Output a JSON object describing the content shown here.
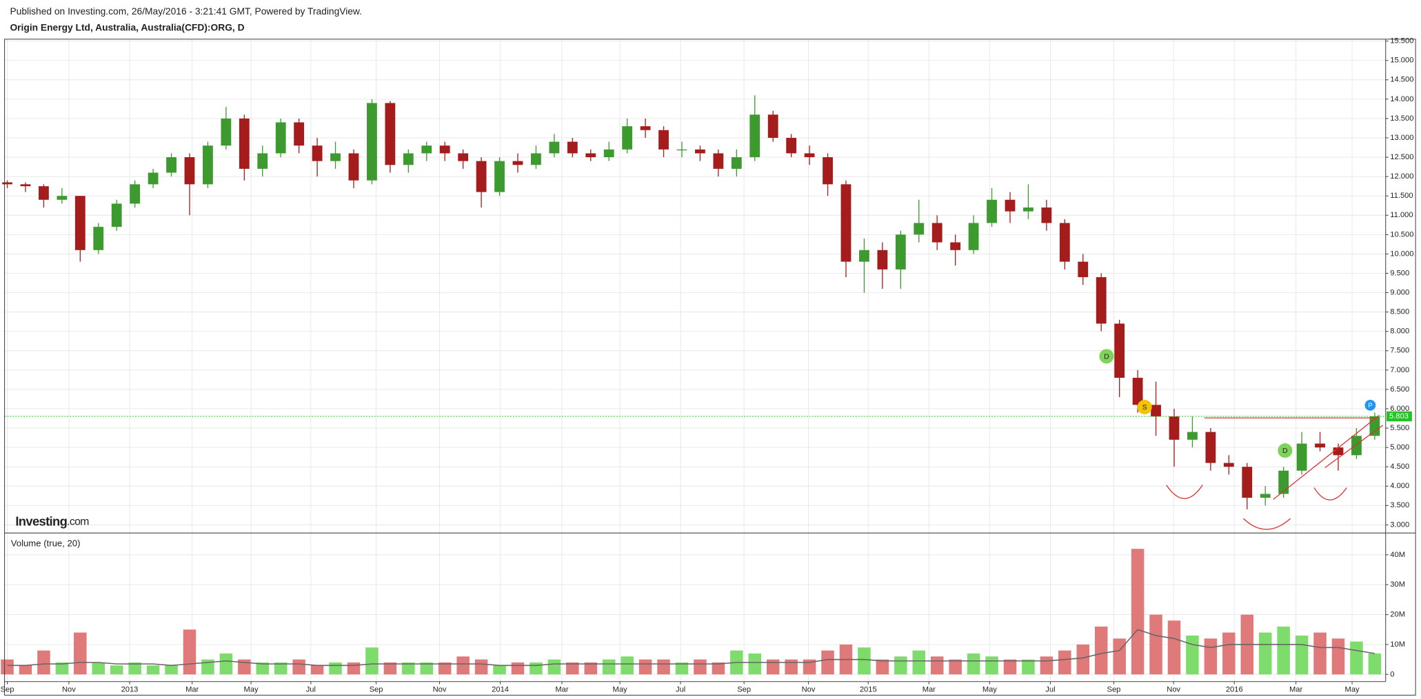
{
  "header": {
    "published": "Published on Investing.com, 26/May/2016 - 3:21:41 GMT, Powered by TradingView.",
    "symbol": "Origin Energy Ltd, Australia, Australia(CFD):ORG, D"
  },
  "logo": [
    "Investing",
    ".com"
  ],
  "chart_data": [
    {
      "type": "candlestick",
      "up_color": "#3c9a2f",
      "down_color": "#a51c1c",
      "open": [
        11.85,
        11.8,
        11.75,
        11.4,
        11.5,
        10.1,
        10.7,
        11.3,
        11.8,
        12.1,
        12.5,
        11.8,
        12.8,
        13.5,
        12.2,
        12.6,
        13.4,
        12.8,
        12.4,
        12.6,
        11.9,
        13.9,
        12.3,
        12.6,
        12.8,
        12.6,
        12.4,
        11.6,
        12.4,
        12.3,
        12.6,
        12.9,
        12.6,
        12.5,
        12.7,
        13.3,
        13.2,
        12.7,
        12.7,
        12.6,
        12.2,
        12.5,
        13.6,
        13.0,
        12.6,
        12.5,
        11.8,
        9.8,
        10.1,
        9.6,
        10.5,
        10.8,
        10.3,
        10.1,
        10.8,
        11.4,
        11.1,
        11.2,
        10.8,
        9.8,
        9.4,
        8.2,
        6.8,
        6.1,
        5.8,
        5.2,
        5.4,
        4.6,
        4.5,
        3.7,
        3.8,
        4.4,
        5.1,
        5.0,
        4.8,
        5.3
      ],
      "high": [
        11.9,
        11.85,
        11.8,
        11.7,
        11.5,
        10.8,
        11.4,
        11.9,
        12.2,
        12.6,
        12.6,
        12.9,
        13.8,
        13.6,
        12.8,
        13.5,
        13.5,
        13.0,
        12.9,
        12.7,
        14.0,
        13.95,
        12.7,
        12.9,
        12.9,
        12.7,
        12.5,
        12.5,
        12.6,
        12.8,
        13.1,
        13.0,
        12.7,
        12.9,
        13.5,
        13.5,
        13.3,
        12.9,
        12.8,
        12.7,
        12.7,
        14.1,
        13.7,
        13.1,
        12.8,
        12.6,
        11.9,
        10.4,
        10.3,
        10.6,
        11.4,
        11.0,
        10.5,
        11.0,
        11.7,
        11.6,
        11.8,
        11.4,
        10.9,
        10.0,
        9.5,
        8.3,
        7.0,
        6.7,
        6.0,
        5.8,
        5.5,
        4.8,
        4.6,
        4.0,
        4.5,
        5.4,
        5.4,
        5.1,
        5.5,
        5.9
      ],
      "low": [
        11.7,
        11.6,
        11.2,
        11.3,
        9.8,
        10.0,
        10.6,
        11.2,
        11.7,
        12.0,
        11.0,
        11.7,
        12.7,
        11.9,
        12.0,
        12.5,
        12.6,
        12.0,
        12.2,
        11.7,
        11.8,
        12.1,
        12.1,
        12.4,
        12.4,
        12.2,
        11.2,
        11.5,
        12.1,
        12.2,
        12.5,
        12.5,
        12.4,
        12.4,
        12.6,
        13.0,
        12.5,
        12.5,
        12.4,
        12.0,
        12.0,
        12.4,
        12.9,
        12.5,
        12.3,
        11.5,
        9.4,
        9.0,
        9.1,
        9.1,
        10.3,
        10.1,
        9.7,
        10.0,
        10.7,
        10.8,
        10.9,
        10.6,
        9.6,
        9.2,
        8.0,
        6.3,
        5.9,
        5.3,
        4.5,
        5.0,
        4.4,
        4.3,
        3.4,
        3.5,
        3.7,
        4.3,
        4.9,
        4.4,
        4.7,
        5.2
      ],
      "close": [
        11.8,
        11.75,
        11.4,
        11.5,
        10.1,
        10.7,
        11.3,
        11.8,
        12.1,
        12.5,
        11.8,
        12.8,
        13.5,
        12.2,
        12.6,
        13.4,
        12.8,
        12.4,
        12.6,
        11.9,
        13.9,
        12.3,
        12.6,
        12.8,
        12.6,
        12.4,
        11.6,
        12.4,
        12.3,
        12.6,
        12.9,
        12.6,
        12.5,
        12.7,
        13.3,
        13.2,
        12.7,
        12.7,
        12.6,
        12.2,
        12.5,
        13.6,
        13.0,
        12.6,
        12.5,
        11.8,
        9.8,
        10.1,
        9.6,
        10.5,
        10.8,
        10.3,
        10.1,
        10.8,
        11.4,
        11.1,
        11.2,
        10.8,
        9.8,
        9.4,
        8.2,
        6.8,
        6.1,
        5.8,
        5.2,
        5.4,
        4.6,
        4.5,
        3.7,
        3.8,
        4.4,
        5.1,
        5.0,
        4.8,
        5.3,
        5.803
      ],
      "ylim": [
        2.79,
        15.55
      ],
      "yticks": [
        {
          "value": 3,
          "label": "3.000"
        },
        {
          "value": 3.5,
          "label": "3.500"
        },
        {
          "value": 4,
          "label": "4.000"
        },
        {
          "value": 4.5,
          "label": "4.500"
        },
        {
          "value": 5,
          "label": "5.000"
        },
        {
          "value": 5.5,
          "label": "5.500"
        },
        {
          "value": 6,
          "label": "6.000"
        },
        {
          "value": 6.5,
          "label": "6.500"
        },
        {
          "value": 7,
          "label": "7.000"
        },
        {
          "value": 7.5,
          "label": "7.500"
        },
        {
          "value": 8,
          "label": "8.000"
        },
        {
          "value": 8.5,
          "label": "8.500"
        },
        {
          "value": 9,
          "label": "9.000"
        },
        {
          "value": 9.5,
          "label": "9.500"
        },
        {
          "value": 10,
          "label": "10.000"
        },
        {
          "value": 10.5,
          "label": "10.500"
        },
        {
          "value": 11,
          "label": "11.000"
        },
        {
          "value": 11.5,
          "label": "11.500"
        },
        {
          "value": 12,
          "label": "12.000"
        },
        {
          "value": 12.5,
          "label": "12.500"
        },
        {
          "value": 13,
          "label": "13.000"
        },
        {
          "value": 13.5,
          "label": "13.500"
        },
        {
          "value": 14,
          "label": "14.000"
        },
        {
          "value": 14.5,
          "label": "14.500"
        },
        {
          "value": 15,
          "label": "15.000"
        },
        {
          "value": 15.5,
          "label": "15.500"
        }
      ],
      "last_price": 5.803,
      "last_price_color": "#22c322",
      "annotations": [
        "D",
        "S",
        "D",
        "P"
      ],
      "grid": true
    },
    {
      "type": "bar",
      "title": "Volume (true, 20)",
      "up_color": "#7ddc6b",
      "down_color": "#e0797a",
      "ma_color": "#666666",
      "values": [
        5,
        3,
        8,
        4,
        14,
        4,
        3,
        4,
        3,
        3,
        15,
        5,
        7,
        5,
        4,
        4,
        5,
        3,
        4,
        4,
        9,
        4,
        4,
        4,
        4,
        6,
        5,
        3,
        4,
        4,
        5,
        4,
        4,
        5,
        6,
        5,
        5,
        4,
        5,
        4,
        8,
        7,
        5,
        5,
        5,
        8,
        10,
        9,
        5,
        6,
        8,
        6,
        5,
        7,
        6,
        5,
        5,
        6,
        8,
        10,
        16,
        12,
        42,
        20,
        18,
        13,
        12,
        14,
        20,
        14,
        16,
        13,
        14,
        12,
        11,
        7
      ],
      "ma_values": [
        3,
        3,
        3.5,
        3.5,
        4,
        4,
        3.5,
        3.5,
        3.5,
        3,
        3.5,
        4,
        4.5,
        4,
        3.5,
        3.5,
        3.5,
        3,
        3,
        3,
        3.5,
        3.5,
        3.5,
        3.5,
        3.5,
        3.5,
        3.5,
        3,
        3,
        3,
        3.5,
        3.5,
        3.5,
        3.5,
        3.5,
        3.5,
        3.5,
        3.5,
        3.5,
        3.5,
        4,
        4,
        4,
        4,
        4,
        5,
        5,
        5,
        4.5,
        4.5,
        4.5,
        4.5,
        4.5,
        4.5,
        4.5,
        4.5,
        4.5,
        4.5,
        5,
        5.5,
        7,
        8,
        15,
        13,
        12,
        10,
        9,
        10,
        10,
        10,
        10,
        10,
        9,
        9,
        8,
        7
      ],
      "ylim": [
        -2.4,
        47.3
      ],
      "yticks": [
        0,
        {
          "value": 10,
          "label": "10M"
        },
        {
          "value": 20,
          "label": "20M"
        },
        {
          "value": 30,
          "label": "30M"
        },
        {
          "value": 40,
          "label": "40M"
        }
      ],
      "xlim": [
        -0.15,
        75.6
      ],
      "xticks": [
        {
          "value": 0,
          "label": "Sep"
        },
        {
          "value": 3.38,
          "label": "Nov"
        },
        {
          "value": 6.71,
          "label": "2013"
        },
        {
          "value": 10.14,
          "label": "Mar"
        },
        {
          "value": 13.37,
          "label": "May"
        },
        {
          "value": 16.65,
          "label": "Jul"
        },
        {
          "value": 20.23,
          "label": "Sep"
        },
        {
          "value": 23.71,
          "label": "Nov"
        },
        {
          "value": 27.04,
          "label": "2014"
        },
        {
          "value": 30.42,
          "label": "Mar"
        },
        {
          "value": 33.6,
          "label": "May"
        },
        {
          "value": 36.93,
          "label": "Jul"
        },
        {
          "value": 40.41,
          "label": "Sep"
        },
        {
          "value": 43.94,
          "label": "Nov"
        },
        {
          "value": 47.22,
          "label": "2015"
        },
        {
          "value": 50.55,
          "label": "Mar"
        },
        {
          "value": 53.88,
          "label": "May"
        },
        {
          "value": 57.21,
          "label": "Jul"
        },
        {
          "value": 60.69,
          "label": "Sep"
        },
        {
          "value": 63.97,
          "label": "Nov"
        },
        {
          "value": 67.3,
          "label": "2016"
        },
        {
          "value": 70.68,
          "label": "Mar"
        },
        {
          "value": 73.76,
          "label": "May"
        }
      ],
      "grid": true
    }
  ]
}
